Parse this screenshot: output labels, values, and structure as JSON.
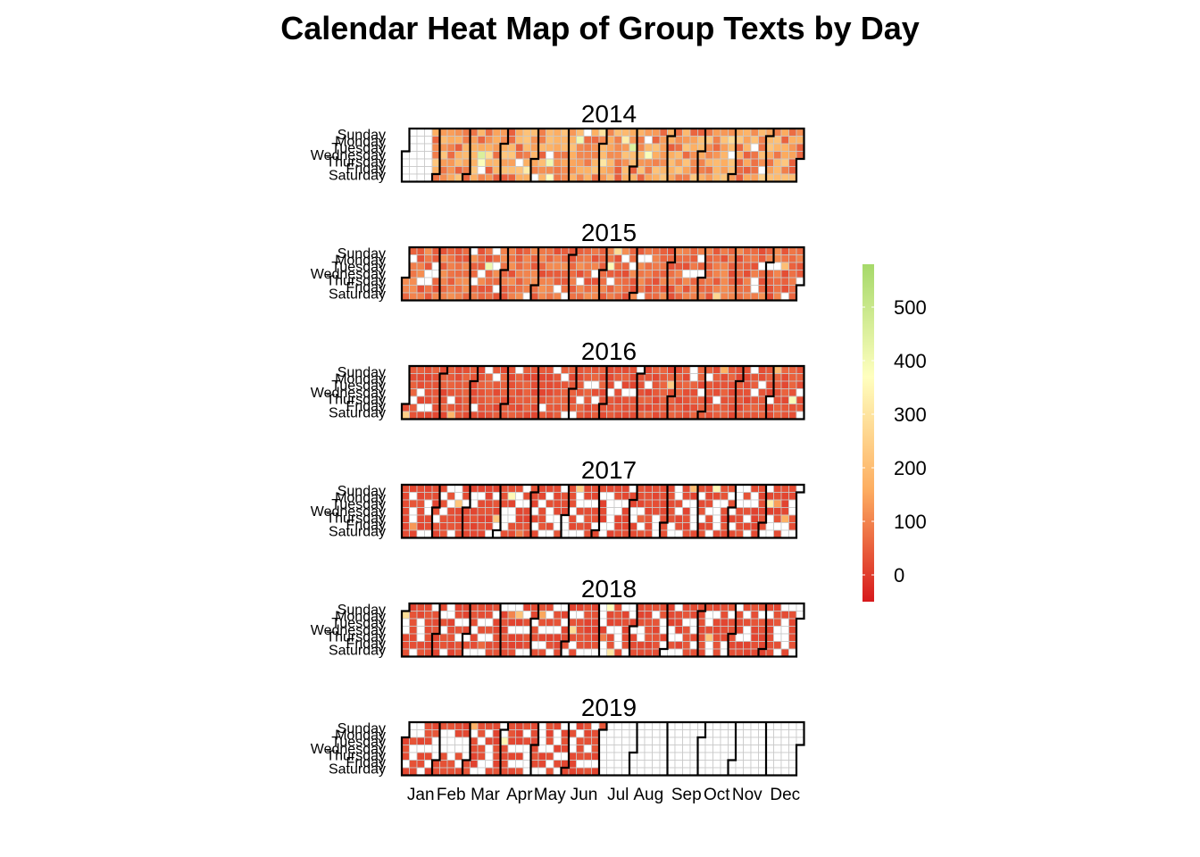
{
  "chart_data": {
    "type": "heatmap",
    "title": "Calendar Heat Map of Group Texts by Day",
    "years": [
      "2014",
      "2015",
      "2016",
      "2017",
      "2018",
      "2019"
    ],
    "day_labels": [
      "Sunday",
      "Monday",
      "Tuesday",
      "Wednesday",
      "Thursday",
      "Friday",
      "Saturday"
    ],
    "month_labels": [
      "Jan",
      "Feb",
      "Mar",
      "Apr",
      "May",
      "Jun",
      "Jul",
      "Aug",
      "Sep",
      "Oct",
      "Nov",
      "Dec"
    ],
    "legend": {
      "ticks": [
        "0",
        "100",
        "200",
        "300",
        "400",
        "500"
      ],
      "range": [
        -50,
        580
      ],
      "colors": [
        "#d7191c",
        "#fdae61",
        "#ffffbf",
        "#a6d96a"
      ],
      "missing_color": "#ffffff"
    },
    "data_summary": {
      "2014": {
        "data_from": "2014-01-26",
        "typical_value": 150
      },
      "2015": {
        "typical_value": 80
      },
      "2016": {
        "typical_value": 40
      },
      "2017": {
        "typical_value": 25
      },
      "2018": {
        "typical_value": 25
      },
      "2019": {
        "data_until": "2019-06-30",
        "typical_value": 25
      }
    }
  }
}
